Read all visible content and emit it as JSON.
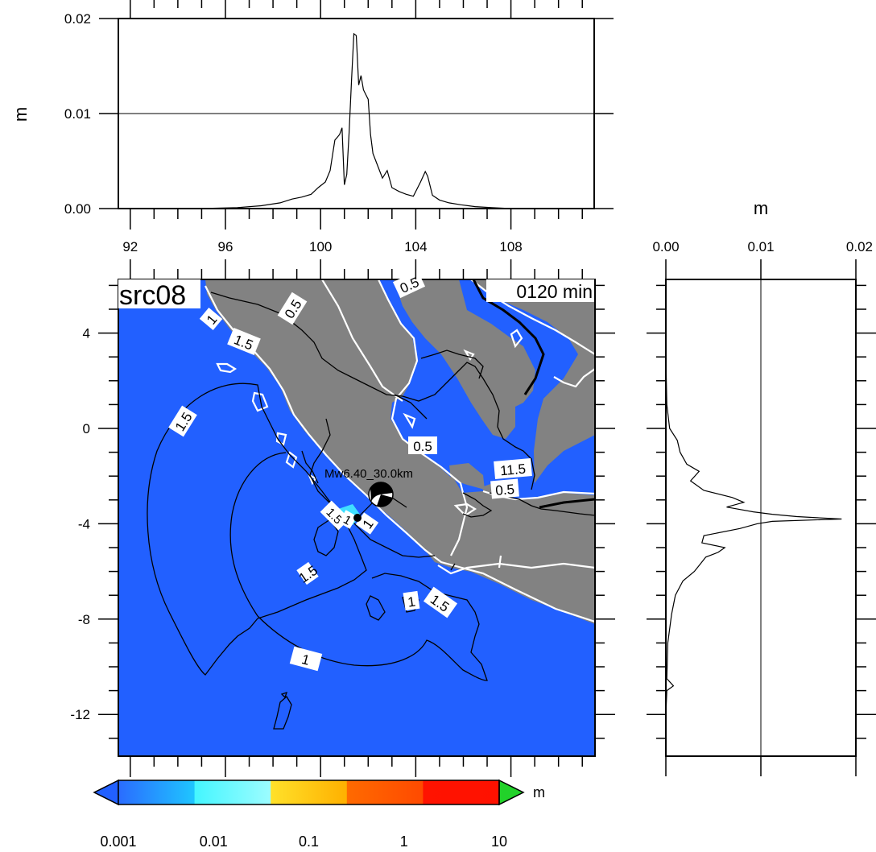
{
  "colors": {
    "ocean": "#2260ff",
    "land": "#828282",
    "frame": "#000000",
    "white": "#ffffff",
    "cpt": [
      "#2e8bff",
      "#44f6ff",
      "#ffe12a",
      "#ff6a00",
      "#ff1300"
    ],
    "under": "#2260ff",
    "over": "#22d22a"
  },
  "map": {
    "label": "src08",
    "time": "0120 min",
    "event": "Mw6.40_30.0km",
    "lon_range": [
      91.5,
      111.5
    ],
    "lat_range": [
      -13.75,
      6.25
    ],
    "x_ticks": [
      "92",
      "96",
      "100",
      "104",
      "108"
    ],
    "y_ticks": [
      "4",
      "0",
      "-4",
      "-8",
      "-12"
    ],
    "contour_labels": [
      "1.5",
      "1",
      "1.5",
      "0.5",
      "0.5",
      "1.5",
      "0.5",
      "11.5",
      "0.5",
      "1.5",
      "1",
      "1",
      "1.5",
      "1.5",
      "1",
      "1"
    ]
  },
  "colorbar": {
    "unit": "m",
    "labels": [
      "0.001",
      "0.01",
      "0.1",
      "1",
      "10"
    ]
  },
  "chart_data": [
    {
      "type": "line",
      "title": "",
      "ylabel": "m",
      "xlim": [
        91.5,
        111.5
      ],
      "ylim": [
        0,
        0.02
      ],
      "x_ticks": [
        "92",
        "96",
        "100",
        "104",
        "108"
      ],
      "y_ticks": [
        "0.00",
        "0.01",
        "0.02"
      ],
      "grid": "horizontal line at 0.01",
      "x": [
        91.5,
        95.0,
        96.5,
        97.5,
        98.3,
        98.8,
        99.2,
        99.6,
        99.9,
        100.2,
        100.4,
        100.6,
        100.7,
        100.8,
        100.9,
        101.0,
        101.1,
        101.2,
        101.3,
        101.4,
        101.5,
        101.6,
        101.7,
        101.8,
        101.9,
        102.0,
        102.1,
        102.2,
        102.4,
        102.6,
        102.8,
        103.0,
        103.3,
        103.6,
        103.9,
        104.2,
        104.4,
        104.5,
        104.7,
        105.0,
        105.4,
        105.9,
        106.5,
        107.2,
        108.0,
        109.0,
        110.0,
        111.5
      ],
      "y": [
        0.0,
        0.0,
        0.0001,
        0.0003,
        0.0006,
        0.001,
        0.0012,
        0.0015,
        0.0022,
        0.0028,
        0.004,
        0.0072,
        0.0075,
        0.0078,
        0.0085,
        0.0025,
        0.0036,
        0.008,
        0.0135,
        0.0184,
        0.0182,
        0.013,
        0.014,
        0.0125,
        0.012,
        0.0115,
        0.0078,
        0.0058,
        0.0045,
        0.0032,
        0.004,
        0.0022,
        0.0018,
        0.0015,
        0.0013,
        0.0028,
        0.0039,
        0.0034,
        0.0014,
        0.0009,
        0.0006,
        0.0004,
        0.0002,
        0.0001,
        0.0,
        0.0,
        0.0,
        0.0
      ]
    },
    {
      "type": "line",
      "title": "",
      "xlabel": "m",
      "xlim": [
        0,
        0.02
      ],
      "ylim": [
        -13.75,
        6.25
      ],
      "x_ticks": [
        "0.00",
        "0.01",
        "0.02"
      ],
      "grid": "vertical line at 0.01",
      "lat": [
        6.25,
        3.0,
        1.0,
        0.0,
        -0.5,
        -1.0,
        -1.5,
        -1.8,
        -2.2,
        -2.6,
        -2.9,
        -3.1,
        -3.3,
        -3.5,
        -3.6,
        -3.7,
        -3.8,
        -3.9,
        -4.0,
        -4.2,
        -4.5,
        -4.8,
        -5.0,
        -5.2,
        -5.4,
        -5.7,
        -6.0,
        -6.4,
        -7.0,
        -7.8,
        -9.0,
        -10.5,
        -10.8,
        -11.0,
        -12.0,
        -13.75
      ],
      "values": [
        0.0,
        0.0,
        0.0001,
        0.0004,
        0.0012,
        0.0015,
        0.0022,
        0.0035,
        0.0026,
        0.004,
        0.007,
        0.0082,
        0.0064,
        0.0092,
        0.0112,
        0.0138,
        0.0185,
        0.0112,
        0.0096,
        0.0078,
        0.004,
        0.0038,
        0.0062,
        0.0055,
        0.0042,
        0.0036,
        0.003,
        0.0018,
        0.001,
        0.0006,
        0.0002,
        0.0001,
        0.0008,
        0.0001,
        0.0,
        0.0
      ]
    }
  ]
}
